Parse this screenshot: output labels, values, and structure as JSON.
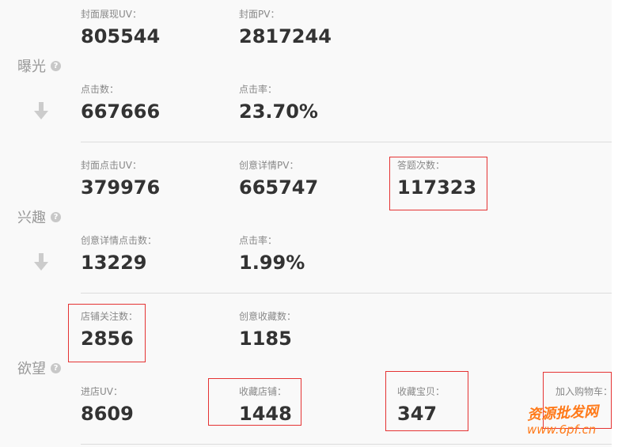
{
  "sections": [
    {
      "title": "曝光",
      "metrics": [
        {
          "label": "封面展现UV：",
          "value": "805544"
        },
        {
          "label": "封面PV：",
          "value": "2817244"
        },
        {
          "label": "点击数：",
          "value": "667666"
        },
        {
          "label": "点击率：",
          "value": "23.70%"
        }
      ]
    },
    {
      "title": "兴趣",
      "metrics": [
        {
          "label": "封面点击UV：",
          "value": "379976"
        },
        {
          "label": "创意详情PV：",
          "value": "665747"
        },
        {
          "label": "答题次数：",
          "value": "117323"
        },
        {
          "label": "创意详情点击数：",
          "value": "13229"
        },
        {
          "label": "点击率：",
          "value": "1.99%"
        }
      ]
    },
    {
      "title": "欲望",
      "metrics": [
        {
          "label": "店铺关注数：",
          "value": "2856"
        },
        {
          "label": "创意收藏数：",
          "value": "1185"
        },
        {
          "label": "进店UV：",
          "value": "8609"
        },
        {
          "label": "收藏店铺：",
          "value": "1448"
        },
        {
          "label": "收藏宝贝：",
          "value": "347"
        },
        {
          "label": "加入购物车：",
          "value": ""
        }
      ]
    }
  ],
  "help_icon": "?",
  "highlight_color": "#e53333",
  "watermark": {
    "line1": "资源批发网",
    "line2": "www.6pf.cn"
  }
}
